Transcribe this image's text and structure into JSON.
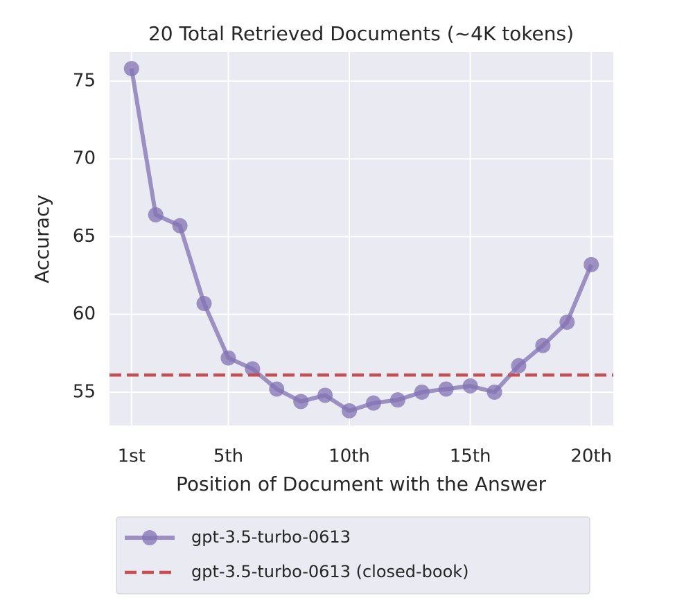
{
  "chart_data": {
    "type": "line",
    "title": "20 Total Retrieved Documents (~4K tokens)",
    "xlabel": "Position of Document with the Answer",
    "ylabel": "Accuracy",
    "x": [
      1,
      2,
      3,
      4,
      5,
      6,
      7,
      8,
      9,
      10,
      11,
      12,
      13,
      14,
      15,
      16,
      17,
      18,
      19,
      20
    ],
    "series": [
      {
        "name": "gpt-3.5-turbo-0613",
        "color": "#8172b3",
        "marker": "circle",
        "values": [
          75.8,
          66.4,
          65.7,
          60.7,
          57.2,
          56.5,
          55.2,
          54.4,
          54.8,
          53.8,
          54.3,
          54.5,
          55.0,
          55.2,
          55.4,
          55.0,
          56.7,
          58.0,
          59.5,
          63.2
        ]
      },
      {
        "name": "gpt-3.5-turbo-0613 (closed-book)",
        "color": "#c44e52",
        "linestyle": "dashed",
        "y": 56.1
      }
    ],
    "xlim": [
      0.09,
      20.91
    ],
    "ylim": [
      52.86,
      76.87
    ],
    "xticks": [
      {
        "value": 1,
        "label": "1st"
      },
      {
        "value": 5,
        "label": "5th"
      },
      {
        "value": 10,
        "label": "10th"
      },
      {
        "value": 15,
        "label": "15th"
      },
      {
        "value": 20,
        "label": "20th"
      }
    ],
    "yticks": [
      55,
      60,
      65,
      70,
      75
    ],
    "grid": true,
    "legend": "bottom"
  }
}
